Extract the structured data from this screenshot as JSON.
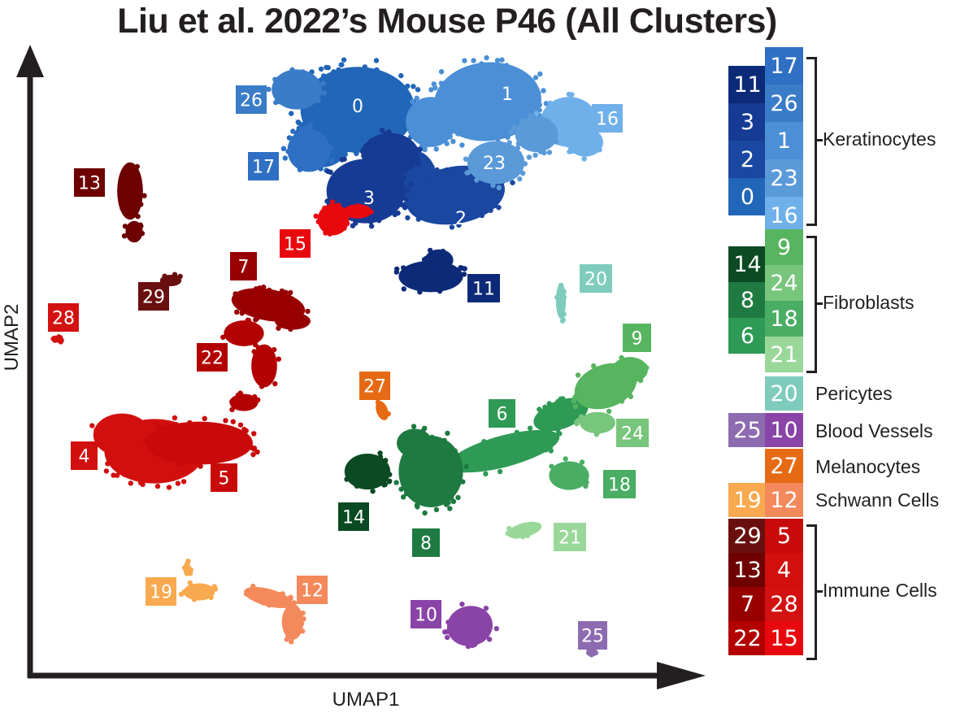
{
  "chart_data": {
    "type": "scatter",
    "title": "Liu et al. 2022’s Mouse P46 (All Clusters)",
    "xlabel": "UMAP1",
    "ylabel": "UMAP2",
    "grid": false,
    "axis_ticks": false,
    "clusters": [
      {
        "id": "0",
        "color": "#2166b8",
        "group": "Keratinocytes"
      },
      {
        "id": "1",
        "color": "#4b8fd6",
        "group": "Keratinocytes"
      },
      {
        "id": "2",
        "color": "#1a47a0",
        "group": "Keratinocytes"
      },
      {
        "id": "3",
        "color": "#163b94",
        "group": "Keratinocytes"
      },
      {
        "id": "4",
        "color": "#d20f0f",
        "group": "Immune Cells"
      },
      {
        "id": "5",
        "color": "#c90a0a",
        "group": "Immune Cells"
      },
      {
        "id": "6",
        "color": "#2f9a55",
        "group": "Fibroblasts"
      },
      {
        "id": "7",
        "color": "#980000",
        "group": "Immune Cells"
      },
      {
        "id": "8",
        "color": "#1e7a41",
        "group": "Fibroblasts"
      },
      {
        "id": "9",
        "color": "#56b55e",
        "group": "Fibroblasts"
      },
      {
        "id": "10",
        "color": "#8a44a8",
        "group": "Blood Vessels"
      },
      {
        "id": "11",
        "color": "#0c2a78",
        "group": "Keratinocytes"
      },
      {
        "id": "12",
        "color": "#f4895c",
        "group": "Schwann Cells"
      },
      {
        "id": "13",
        "color": "#6e0000",
        "group": "Immune Cells"
      },
      {
        "id": "14",
        "color": "#0b4a22",
        "group": "Fibroblasts"
      },
      {
        "id": "15",
        "color": "#e8090e",
        "group": "Immune Cells"
      },
      {
        "id": "16",
        "color": "#6fb0ea",
        "group": "Keratinocytes"
      },
      {
        "id": "17",
        "color": "#2f6fc4",
        "group": "Keratinocytes"
      },
      {
        "id": "18",
        "color": "#4aad64",
        "group": "Fibroblasts"
      },
      {
        "id": "19",
        "color": "#f9a94f",
        "group": "Schwann Cells"
      },
      {
        "id": "20",
        "color": "#7fccbd",
        "group": "Pericytes"
      },
      {
        "id": "21",
        "color": "#9ad89a",
        "group": "Fibroblasts"
      },
      {
        "id": "22",
        "color": "#b30000",
        "group": "Immune Cells"
      },
      {
        "id": "23",
        "color": "#5b9ad9",
        "group": "Keratinocytes"
      },
      {
        "id": "24",
        "color": "#78c57c",
        "group": "Fibroblasts"
      },
      {
        "id": "25",
        "color": "#8d6bb0",
        "group": "Blood Vessels"
      },
      {
        "id": "26",
        "color": "#3a7cc8",
        "group": "Keratinocytes"
      },
      {
        "id": "27",
        "color": "#e66a14",
        "group": "Melanocytes"
      },
      {
        "id": "28",
        "color": "#d41111",
        "group": "Immune Cells"
      },
      {
        "id": "29",
        "color": "#6a0f0f",
        "group": "Immune Cells"
      }
    ],
    "legend": {
      "position": "right",
      "groups": [
        {
          "name": "Keratinocytes",
          "left": [
            "11",
            "3",
            "2",
            "0"
          ],
          "right": [
            "17",
            "26",
            "1",
            "23",
            "16"
          ]
        },
        {
          "name": "Fibroblasts",
          "left": [
            "14",
            "8",
            "6"
          ],
          "right": [
            "9",
            "24",
            "18",
            "21"
          ]
        },
        {
          "name": "Pericytes",
          "left": [],
          "right": [
            "20"
          ]
        },
        {
          "name": "Blood Vessels",
          "left": [
            "25"
          ],
          "right": [
            "10"
          ]
        },
        {
          "name": "Melanocytes",
          "left": [],
          "right": [
            "27"
          ]
        },
        {
          "name": "Schwann Cells",
          "left": [
            "19"
          ],
          "right": [
            "12"
          ]
        },
        {
          "name": "Immune Cells",
          "left": [
            "29",
            "13",
            "7",
            "22"
          ],
          "right": [
            "5",
            "4",
            "28",
            "15"
          ]
        }
      ]
    }
  }
}
